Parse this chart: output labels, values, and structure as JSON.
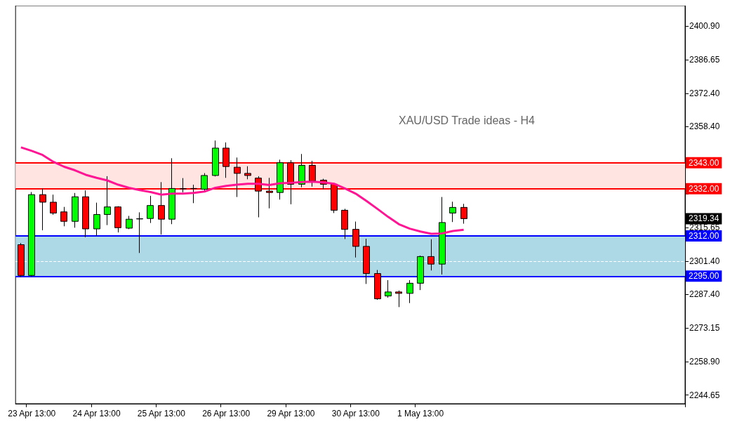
{
  "chart_data": {
    "type": "candlestick",
    "title": "XAU/USD Trade ideas - H4",
    "categories": [
      null,
      "23 Apr 13:00",
      null,
      null,
      null,
      null,
      null,
      "24 Apr 13:00",
      null,
      null,
      null,
      null,
      null,
      "25 Apr 13:00",
      null,
      null,
      null,
      null,
      null,
      "26 Apr 13:00",
      null,
      null,
      null,
      null,
      null,
      "29 Apr 13:00",
      null,
      null,
      null,
      null,
      null,
      "30 Apr 13:00",
      null,
      null,
      null,
      null,
      null,
      "1 May 13:00",
      null,
      null,
      null,
      null,
      null,
      null,
      null,
      null,
      null,
      null,
      null,
      null,
      null,
      null,
      null,
      null,
      null,
      null,
      null,
      null,
      null,
      null,
      null,
      null
    ],
    "ohlc": [
      [
        2308.3,
        2309,
        2294.5,
        2295.3
      ],
      [
        2295.3,
        2330.6,
        2294.8,
        2329.5
      ],
      [
        2329.5,
        2332.1,
        2314.4,
        2326.3
      ],
      [
        2326.3,
        2329.5,
        2321,
        2321.7
      ],
      [
        2322.2,
        2324.3,
        2316.1,
        2318.2
      ],
      [
        2318.2,
        2330.2,
        2315.5,
        2328.6
      ],
      [
        2328.6,
        2331.3,
        2311.5,
        2315
      ],
      [
        2315,
        2326.1,
        2312.1,
        2321.1
      ],
      [
        2321.1,
        2337.3,
        2316.6,
        2324.3
      ],
      [
        2324.3,
        2324.6,
        2313.5,
        2315.5
      ],
      [
        2315.3,
        2320.5,
        2314.9,
        2319.1
      ],
      [
        2319.3,
        2322,
        2304.8,
        2319.2
      ],
      [
        2319.4,
        2329,
        2317.5,
        2324.9
      ],
      [
        2324.9,
        2334.8,
        2312.6,
        2319.1
      ],
      [
        2319.1,
        2344.9,
        2317,
        2332.1
      ],
      [
        2332,
        2336.5,
        2330.5,
        2332
      ],
      [
        2332.1,
        2333.7,
        2325.9,
        2332.1
      ],
      [
        2331.8,
        2338.6,
        2330.8,
        2337.6
      ],
      [
        2337.6,
        2352.4,
        2337.2,
        2349.2
      ],
      [
        2349.2,
        2351.6,
        2336.6,
        2341.4
      ],
      [
        2341.1,
        2345.2,
        2328.5,
        2338.5
      ],
      [
        2338.5,
        2341.5,
        2336,
        2337.6
      ],
      [
        2336.5,
        2337.3,
        2319.9,
        2331
      ],
      [
        2331,
        2336.6,
        2323.7,
        2330.4
      ],
      [
        2330.4,
        2344.3,
        2327.4,
        2343
      ],
      [
        2343,
        2344.1,
        2325.4,
        2333.9
      ],
      [
        2333.9,
        2346.7,
        2332.6,
        2341.9
      ],
      [
        2341.9,
        2343.8,
        2332.9,
        2335.3
      ],
      [
        2335.6,
        2336.2,
        2331.8,
        2333.9
      ],
      [
        2333.9,
        2334.4,
        2321.7,
        2322.9
      ],
      [
        2322.9,
        2323.5,
        2310.7,
        2314.8
      ],
      [
        2314.8,
        2318.1,
        2302.9,
        2307.6
      ],
      [
        2307.6,
        2310.8,
        2291.7,
        2296.1
      ],
      [
        2296.1,
        2297.6,
        2285,
        2285.4
      ],
      [
        2286.6,
        2293.3,
        2285.9,
        2288.3
      ],
      [
        2288.3,
        2288.9,
        2281.9,
        2287.7
      ],
      [
        2287.7,
        2293.3,
        2283.6,
        2292
      ],
      [
        2292,
        2303.7,
        2289.1,
        2303.3
      ],
      [
        2303.3,
        2310.6,
        2297.4,
        2300.1
      ],
      [
        2300.1,
        2328.5,
        2295.7,
        2317.7
      ],
      [
        2321.7,
        2326.5,
        2317.9,
        2324.1
      ],
      [
        2324.1,
        2325.6,
        2317.2,
        2319.34
      ],
      null,
      null,
      null,
      null,
      null,
      null,
      null,
      null,
      null,
      null,
      null,
      null,
      null,
      null,
      null,
      null,
      null,
      null,
      null,
      null
    ],
    "colors": [
      "#ff0000",
      "#00ff00",
      "#ff0000",
      "#ff0000",
      "#ff0000",
      "#00ff00",
      "#ff0000",
      "#00ff00",
      "#00ff00",
      "#ff0000",
      "#00ff00",
      "#000000",
      "#00ff00",
      "#ff0000",
      "#00ff00",
      "#000000",
      "#000000",
      "#00ff00",
      "#00ff00",
      "#ff0000",
      "#ff0000",
      "#ff0000",
      "#ff0000",
      "#ff0000",
      "#00ff00",
      "#ff0000",
      "#00ff00",
      "#ff0000",
      "#ff0000",
      "#ff0000",
      "#ff0000",
      "#ff0000",
      "#ff0000",
      "#ff0000",
      "#00ff00",
      "#ff0000",
      "#00ff00",
      "#00ff00",
      "#ff0000",
      "#00ff00",
      "#00ff00",
      "#ff0000",
      null,
      null,
      null,
      null,
      null,
      null,
      null,
      null,
      null,
      null,
      null,
      null,
      null,
      null,
      null,
      null,
      null,
      null,
      null,
      null
    ],
    "series": [
      {
        "type": "line",
        "color": "#ff1493",
        "values": [
          2349.5,
          2348,
          2346.3,
          2343.4,
          2341.3,
          2339.8,
          2337.9,
          2336.6,
          2335.5,
          2333.7,
          2332.4,
          2331.4,
          2330.6,
          2329.5,
          2329.9,
          2329.9,
          2330.2,
          2330.8,
          2332.4,
          2333.2,
          2333.7,
          2334.1,
          2334.1,
          2333.6,
          2334.3,
          2334.5,
          2334.8,
          2335,
          2334.7,
          2334.1,
          2332.1,
          2329.9,
          2326.8,
          2323.5,
          2320.1,
          2317,
          2315.1,
          2313.9,
          2312.9,
          2313.1,
          2314.1,
          2314.6,
          null,
          null,
          null,
          null,
          null,
          null,
          null,
          null,
          null,
          null,
          null,
          null,
          null,
          null,
          null,
          null,
          null,
          null,
          null,
          null
        ]
      }
    ],
    "ylim": [
      2241,
      2409.5
    ],
    "yticks": [
      {
        "value": 2244.65,
        "label": "2244.65"
      },
      {
        "value": 2258.9,
        "label": "2258.90"
      },
      {
        "value": 2273.15,
        "label": "2273.15"
      },
      {
        "value": 2287.4,
        "label": "2287.40"
      },
      {
        "value": 2301.4,
        "label": "2301.40"
      },
      {
        "value": 2315.65,
        "label": "2315.65"
      },
      {
        "value": 2329.9,
        "label": null
      },
      {
        "value": 2344.15,
        "label": null
      },
      {
        "value": 2358.4,
        "label": "2358.40"
      },
      {
        "value": 2372.4,
        "label": "2372.40"
      },
      {
        "value": 2386.65,
        "label": "2386.65"
      },
      {
        "value": 2400.9,
        "label": "2400.90"
      }
    ],
    "bands": [
      {
        "axis": "y",
        "from": 2332,
        "to": 2343,
        "color": "#ffe4e1"
      },
      {
        "axis": "y",
        "from": 2295,
        "to": 2312,
        "color": "#add8e6"
      }
    ],
    "ref_lines": [
      {
        "axis": "y",
        "value": 2343,
        "label": "2343.00",
        "color": "#ff0000"
      },
      {
        "axis": "y",
        "value": 2332,
        "label": "2332.00",
        "color": "#ff0000"
      },
      {
        "axis": "y",
        "value": 2312,
        "label": "2312.00",
        "color": "#0000ff"
      },
      {
        "axis": "y",
        "value": 2295,
        "label": "2295.00",
        "color": "#0000ff"
      },
      {
        "axis": "y",
        "value": 2301.4,
        "color": "#ffffff",
        "line_style": "dashed"
      }
    ],
    "annotations": [
      "2319.34"
    ],
    "grid": false,
    "legend": false
  }
}
